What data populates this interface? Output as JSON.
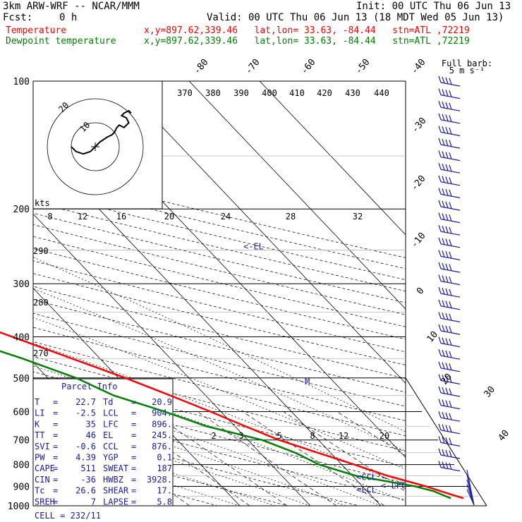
{
  "header": {
    "model": "3km ARW-WRF -- NCAR/MMM",
    "init": "Init: 00 UTC Thu 06 Jun 13",
    "fcst_label": "Fcst:",
    "fcst_value": "0 h",
    "valid": "Valid: 00 UTC Thu 06 Jun 13 (18 MDT Wed 05 Jun 13)",
    "temp_label": "Temperature",
    "temp_info": "x,y=897.62,339.46   lat,lon= 33.63, -84.44   stn=ATL ,72219",
    "dew_label": "Dewpoint temperature",
    "dew_info": "x,y=897.62,339.46   lat,lon= 33.63, -84.44   stn=ATL ,72219",
    "barb_legend_1": "Full barb:",
    "barb_legend_2": "5 m s⁻¹"
  },
  "colors": {
    "temperature": "#ff0000",
    "dewpoint": "#008000",
    "info": "#1a1aa8",
    "grid": "#000000"
  },
  "chart_data": {
    "type": "line",
    "xlabel": "",
    "ylabel": "",
    "pressure_ticks": [
      "100",
      "200",
      "300",
      "400",
      "500",
      "600",
      "700",
      "800",
      "900",
      "1000"
    ],
    "isotherm_labels": [
      "-80",
      "-70",
      "-60",
      "-50",
      "-40",
      "-30",
      "-20",
      "-10",
      "0",
      "10",
      "20",
      "30",
      "40"
    ],
    "theta_labels": [
      "370",
      "380",
      "390",
      "400",
      "410",
      "420",
      "430",
      "440"
    ],
    "dry_adiabat_labels": [
      "290",
      "280",
      "270"
    ],
    "mixing_ratio_labels": [
      "2",
      "3",
      "5",
      "8",
      "12",
      "20"
    ],
    "series": [
      {
        "name": "Temperature",
        "color": "#ff0000",
        "p": [
          960,
          925,
          900,
          850,
          800,
          750,
          700,
          650,
          600,
          550,
          500,
          450,
          400,
          350,
          300,
          250,
          200,
          175,
          150,
          125,
          100
        ],
        "t": [
          22.7,
          20.5,
          19.0,
          15.0,
          11.8,
          8.2,
          4.4,
          1.5,
          -1.5,
          -5.0,
          -9.0,
          -14.0,
          -19.5,
          -26.0,
          -33.5,
          -42.5,
          -52.0,
          -57.5,
          -63.0,
          -66.0,
          -68.5
        ]
      },
      {
        "name": "Dewpoint temperature",
        "color": "#008000",
        "p": [
          960,
          925,
          900,
          850,
          800,
          750,
          700,
          650,
          600,
          550,
          500,
          450,
          400,
          350,
          300,
          250,
          200,
          175,
          150,
          125,
          100
        ],
        "t": [
          20.9,
          19.5,
          17.5,
          10.5,
          6.8,
          5.0,
          2.0,
          -4.0,
          -8.0,
          -13.0,
          -16.0,
          -21.0,
          -27.5,
          -36.0,
          -47.5,
          -56.0,
          -64.0,
          -72.0,
          -80.0,
          -87.0,
          -88.0
        ]
      }
    ],
    "level_markers": [
      {
        "label": "<-EL",
        "p": 245
      },
      {
        "label": "M",
        "p": 510
      },
      {
        "label": "<CCL",
        "p": 876
      },
      {
        "label": "<LCL",
        "p": 904
      },
      {
        "label": "<-LFC",
        "p": 896
      }
    ],
    "wind_barbs_right": {
      "count": 32,
      "full_barb": "5 m s-1"
    },
    "hodograph": {
      "units": "kts",
      "ring_labels": [
        "10",
        "20"
      ],
      "speed_ticks": [
        "8",
        "12",
        "16",
        "20",
        "24",
        "28",
        "32"
      ],
      "trace_u": [
        -10,
        -8,
        -5,
        -2,
        0,
        2,
        5,
        7,
        8,
        9,
        10,
        12,
        14,
        13,
        11,
        12,
        14,
        15
      ],
      "trace_v": [
        0,
        -2,
        -3,
        -2,
        0,
        2,
        4,
        5,
        6,
        8,
        9,
        8,
        10,
        12,
        13,
        14,
        15,
        14
      ]
    }
  },
  "parcel_info": {
    "title": "Parcel Info",
    "rows": [
      [
        "T",
        "22.7",
        "Td",
        "20.9"
      ],
      [
        "LI",
        "-2.5",
        "LCL",
        "904."
      ],
      [
        "K",
        "35",
        "LFC",
        "896."
      ],
      [
        "TT",
        "46",
        "EL",
        "245."
      ],
      [
        "SVI",
        "-0.6",
        "CCL",
        "876."
      ],
      [
        "PW",
        "4.39",
        "YGP",
        "0.1"
      ],
      [
        "CAPE",
        "511",
        "SWEAT",
        "187"
      ],
      [
        "CIN",
        "-36",
        "HWBZ",
        "3928."
      ],
      [
        "Tc",
        "26.6",
        "SHEAR",
        "17."
      ],
      [
        "SREH",
        "7",
        "LAPSE",
        "5.8"
      ]
    ],
    "cell": "CELL = 232/11"
  }
}
